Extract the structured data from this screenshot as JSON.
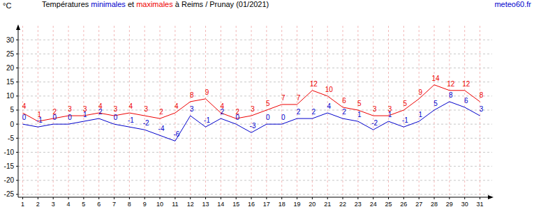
{
  "chart_data": {
    "type": "line",
    "title": "Températures minimales et maximales à Reims / Prunay (01/2021)",
    "y_label": "°C",
    "source": "meteo60.fr",
    "x": [
      1,
      2,
      3,
      4,
      5,
      6,
      7,
      8,
      9,
      10,
      11,
      12,
      13,
      14,
      15,
      16,
      17,
      18,
      19,
      20,
      21,
      22,
      23,
      24,
      25,
      26,
      27,
      28,
      29,
      30,
      31
    ],
    "xlim": [
      0.7,
      31.8
    ],
    "xticks": [
      1,
      2,
      3,
      4,
      5,
      6,
      7,
      8,
      9,
      10,
      11,
      12,
      13,
      14,
      15,
      16,
      17,
      18,
      19,
      20,
      21,
      22,
      23,
      24,
      25,
      26,
      27,
      28,
      29,
      30,
      31
    ],
    "ylim": [
      -26,
      35
    ],
    "yticks": [
      -25,
      -20,
      -15,
      -10,
      -5,
      0,
      5,
      10,
      15,
      20,
      25,
      30
    ],
    "grid": true,
    "data_labels": true,
    "series": [
      {
        "name": "minimales",
        "color": "#0000cc",
        "values": [
          0,
          -1,
          0,
          0,
          1,
          2,
          0,
          -1,
          -2,
          -4,
          -6,
          3,
          -1,
          2,
          0,
          -3,
          0,
          0,
          2,
          2,
          4,
          2,
          1,
          -2,
          1,
          -1,
          1,
          5,
          8,
          6,
          3
        ]
      },
      {
        "name": "maximales",
        "color": "#ee0000",
        "values": [
          4,
          1,
          2,
          3,
          3,
          4,
          3,
          4,
          3,
          2,
          4,
          8,
          9,
          4,
          2,
          3,
          5,
          7,
          7,
          12,
          10,
          6,
          5,
          3,
          3,
          5,
          9,
          14,
          12,
          12,
          8
        ]
      }
    ]
  }
}
